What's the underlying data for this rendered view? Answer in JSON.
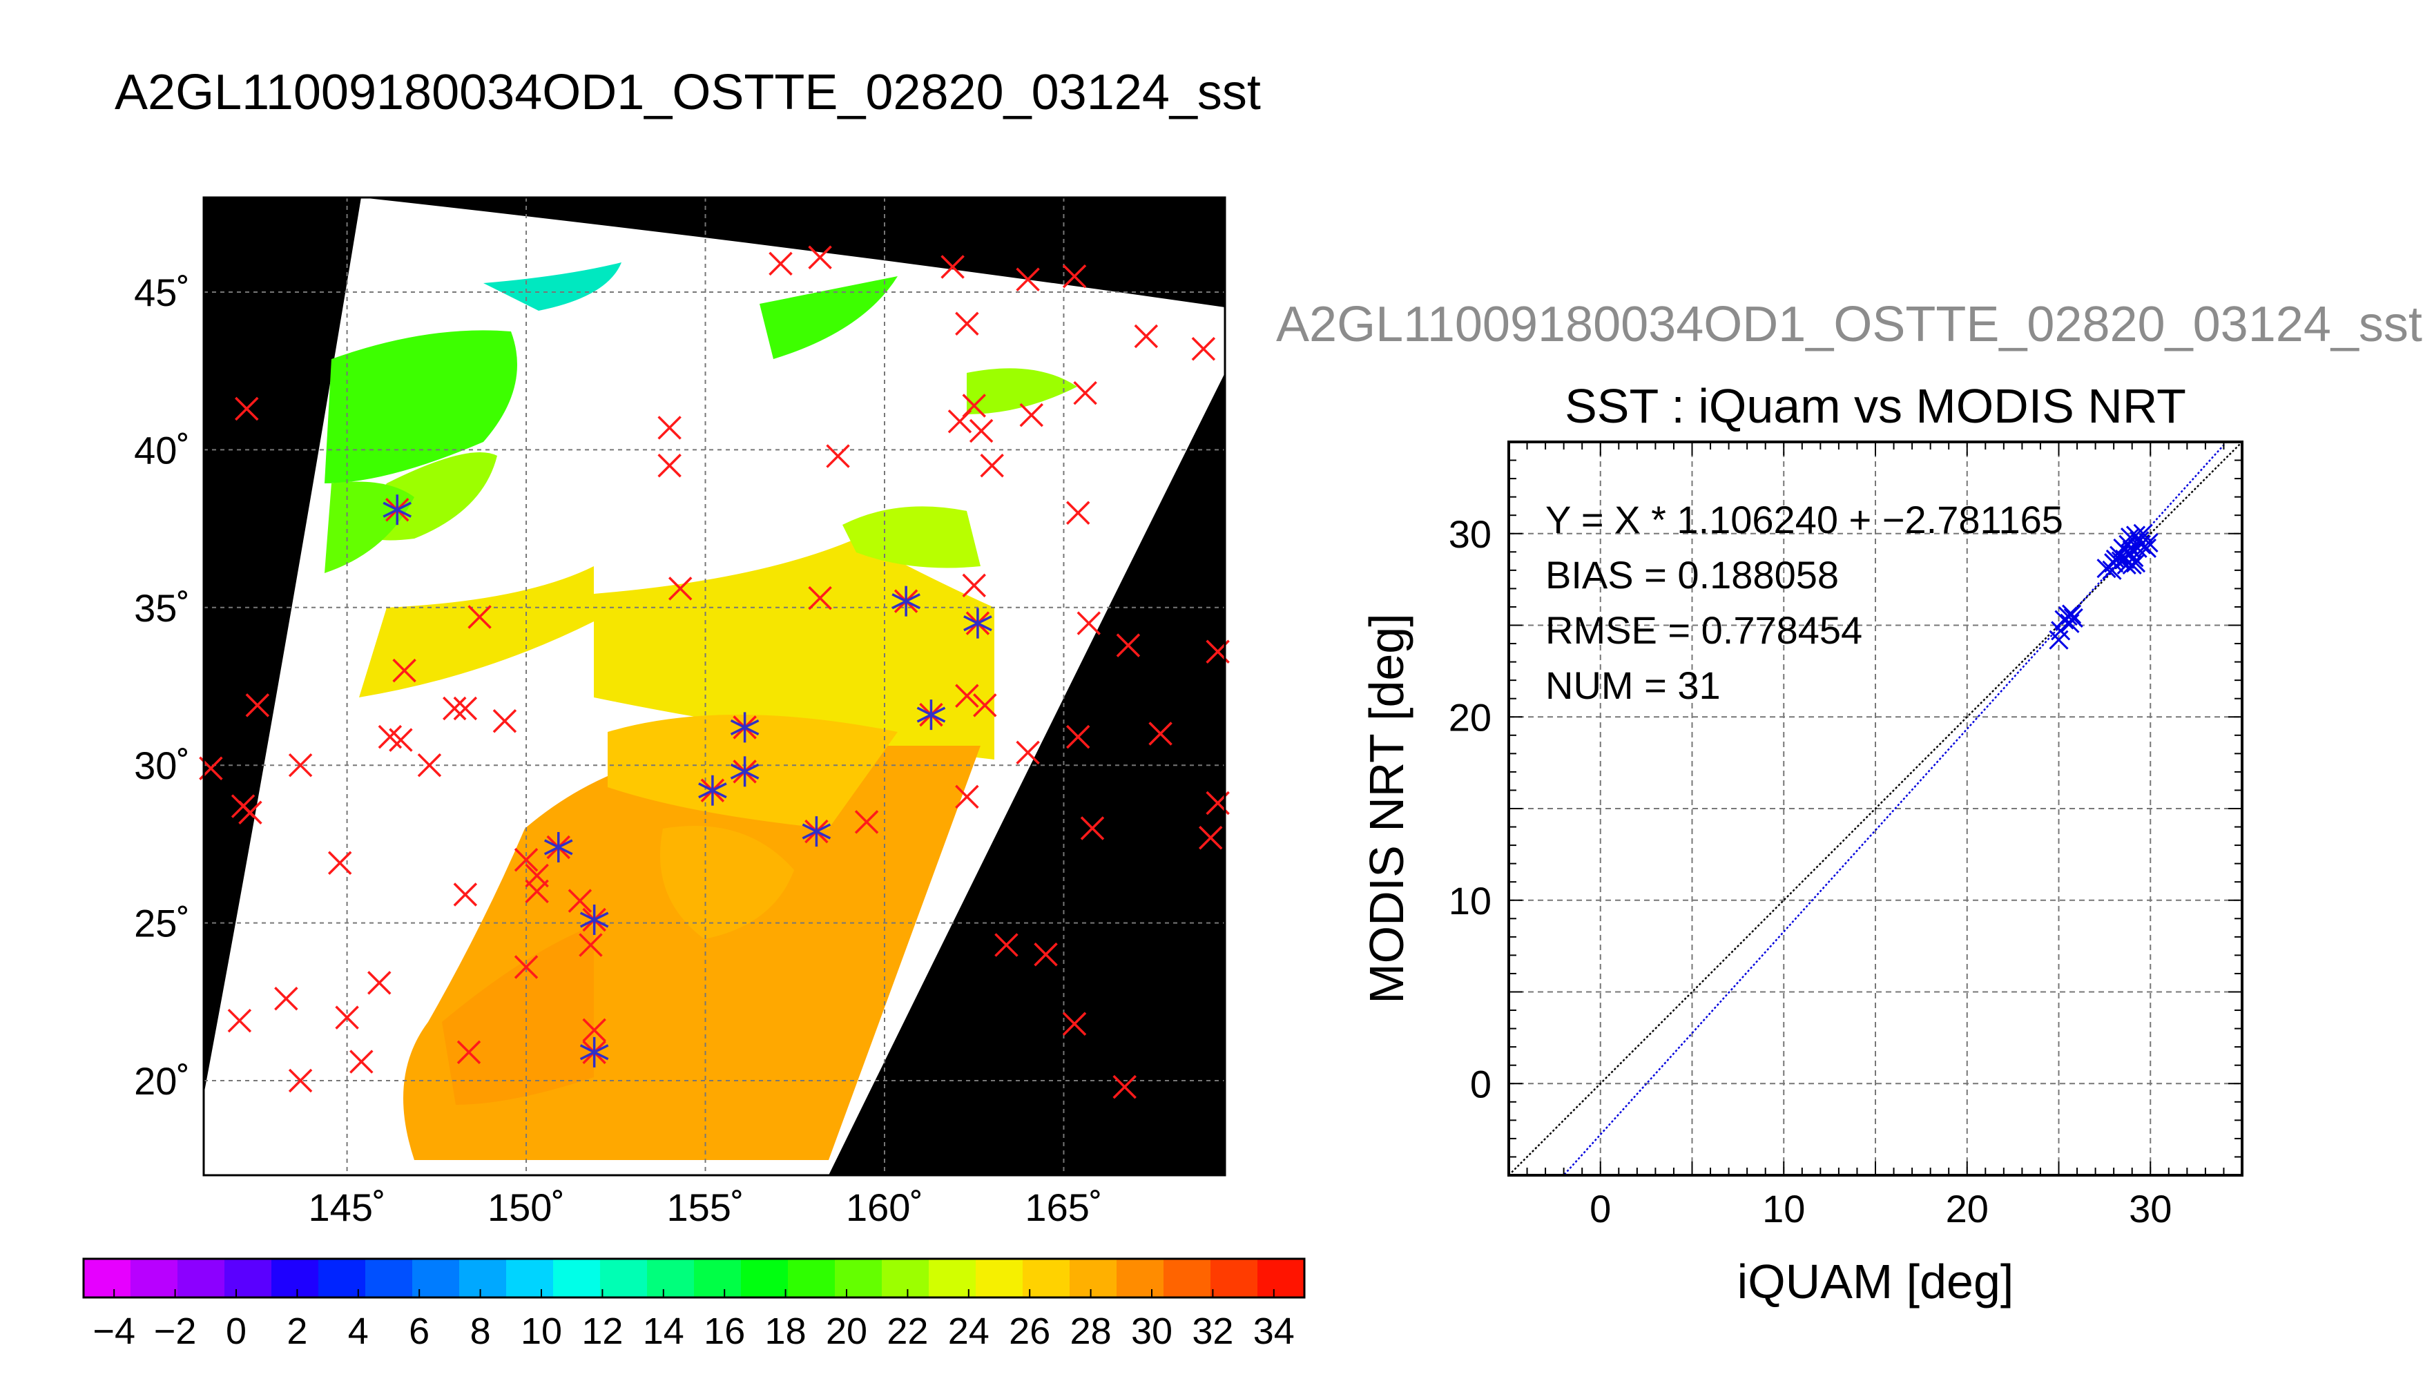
{
  "header": {
    "title": "A2GL11009180034OD1_OSTTE_02820_03124_sst"
  },
  "map_panel": {
    "lon_ticks": [
      "145˚",
      "150˚",
      "155˚",
      "160˚",
      "165˚"
    ],
    "lat_ticks": [
      "45˚",
      "40˚",
      "35˚",
      "30˚",
      "25˚",
      "20˚"
    ],
    "colorbar": {
      "tick_labels": [
        "−4",
        "−2",
        "0",
        "2",
        "4",
        "6",
        "8",
        "10",
        "12",
        "14",
        "16",
        "18",
        "20",
        "22",
        "24",
        "26",
        "28",
        "30",
        "32",
        "34"
      ],
      "colors": [
        "#e600ff",
        "#b800ff",
        "#8c00ff",
        "#5a00ff",
        "#1e00ff",
        "#0024ff",
        "#0050ff",
        "#007cff",
        "#00a8ff",
        "#00d4ff",
        "#00ffe8",
        "#00ffb4",
        "#00ff7c",
        "#00ff46",
        "#00ff10",
        "#2eff00",
        "#64ff00",
        "#9cff00",
        "#d2ff00",
        "#f6f000",
        "#ffd200",
        "#ffb000",
        "#ff8c00",
        "#ff6400",
        "#ff3c00",
        "#ff1400"
      ]
    }
  },
  "scatter_panel": {
    "subtitle": "A2GL11009180034OD1_OSTTE_02820_03124_sst",
    "title": "SST : iQuam vs MODIS NRT",
    "xlabel": "iQUAM [deg]",
    "ylabel": "MODIS NRT [deg]",
    "x_ticks": [
      "0",
      "10",
      "20",
      "30"
    ],
    "y_ticks": [
      "0",
      "10",
      "20",
      "30"
    ],
    "stats": {
      "fit": "Y = X * 1.106240 + −2.781165",
      "bias": "BIAS = 0.188058",
      "rmse": "RMSE = 0.778454",
      "num": "NUM = 31"
    }
  },
  "chart_data": [
    {
      "type": "heatmap",
      "title": "A2GL11009180034OD1_OSTTE_02820_03124_sst",
      "xlabel": "",
      "ylabel": "",
      "xlim": [
        141,
        169.5
      ],
      "ylim": [
        17,
        48
      ],
      "x_ticks": [
        145,
        150,
        155,
        160,
        165
      ],
      "y_ticks": [
        20,
        25,
        30,
        35,
        40,
        45
      ],
      "colorbar_range": [
        -5,
        35
      ],
      "grid": true,
      "matched_points": [
        [
          146.4,
          38.1
        ],
        [
          151.9,
          25.1
        ],
        [
          151.9,
          20.9
        ],
        [
          150.9,
          27.4
        ],
        [
          155.2,
          29.2
        ],
        [
          156.1,
          31.2
        ],
        [
          156.1,
          29.8
        ],
        [
          158.1,
          27.9
        ],
        [
          160.6,
          35.2
        ],
        [
          161.3,
          31.6
        ],
        [
          162.6,
          34.5
        ]
      ],
      "unmatched_points": [
        [
          142.2,
          41.3
        ],
        [
          141.2,
          29.9
        ],
        [
          142.5,
          31.9
        ],
        [
          142.1,
          28.7
        ],
        [
          142.3,
          28.5
        ],
        [
          143.7,
          30.0
        ],
        [
          144.8,
          26.9
        ],
        [
          142.0,
          21.9
        ],
        [
          143.3,
          22.6
        ],
        [
          143.7,
          20.0
        ],
        [
          145.0,
          22.0
        ],
        [
          145.4,
          20.6
        ],
        [
          145.9,
          23.1
        ],
        [
          146.6,
          33.0
        ],
        [
          146.2,
          30.9
        ],
        [
          146.5,
          30.8
        ],
        [
          147.3,
          30.0
        ],
        [
          148.0,
          31.8
        ],
        [
          148.3,
          31.8
        ],
        [
          148.7,
          34.7
        ],
        [
          149.4,
          31.4
        ],
        [
          148.3,
          25.9
        ],
        [
          148.4,
          20.9
        ],
        [
          150.0,
          27.0
        ],
        [
          150.3,
          26.5
        ],
        [
          150.3,
          26.0
        ],
        [
          150.0,
          23.6
        ],
        [
          151.5,
          25.7
        ],
        [
          151.8,
          24.3
        ],
        [
          151.9,
          21.6
        ],
        [
          154.0,
          40.7
        ],
        [
          154.0,
          39.5
        ],
        [
          154.3,
          35.6
        ],
        [
          157.1,
          45.9
        ],
        [
          158.2,
          35.3
        ],
        [
          158.2,
          46.1
        ],
        [
          158.7,
          39.8
        ],
        [
          159.5,
          28.2
        ],
        [
          161.9,
          45.8
        ],
        [
          162.3,
          44.0
        ],
        [
          162.1,
          40.9
        ],
        [
          162.5,
          41.4
        ],
        [
          162.7,
          40.6
        ],
        [
          163.0,
          39.5
        ],
        [
          164.1,
          41.1
        ],
        [
          162.5,
          35.7
        ],
        [
          162.3,
          32.2
        ],
        [
          162.8,
          31.9
        ],
        [
          162.3,
          29.0
        ],
        [
          164.0,
          30.4
        ],
        [
          165.4,
          38.0
        ],
        [
          165.7,
          34.5
        ],
        [
          166.8,
          33.8
        ],
        [
          165.4,
          30.9
        ],
        [
          167.7,
          31.0
        ],
        [
          165.8,
          28.0
        ],
        [
          163.4,
          24.3
        ],
        [
          164.5,
          24.0
        ],
        [
          165.3,
          21.8
        ],
        [
          166.7,
          19.8
        ],
        [
          169.3,
          33.6
        ],
        [
          169.3,
          28.8
        ],
        [
          169.1,
          27.7
        ],
        [
          165.3,
          45.5
        ],
        [
          164.0,
          45.4
        ],
        [
          165.6,
          41.8
        ],
        [
          167.3,
          43.6
        ],
        [
          168.9,
          43.2
        ]
      ]
    },
    {
      "type": "scatter",
      "title": "SST : iQuam vs MODIS NRT",
      "xlabel": "iQUAM [deg]",
      "ylabel": "MODIS NRT [deg]",
      "xlim": [
        -5,
        35
      ],
      "ylim": [
        -5,
        35
      ],
      "grid": true,
      "fit": {
        "slope": 1.10624,
        "intercept": -2.781165
      },
      "points": [
        [
          25.0,
          24.2
        ],
        [
          25.1,
          24.7
        ],
        [
          25.5,
          25.5
        ],
        [
          25.7,
          25.6
        ],
        [
          25.8,
          25.4
        ],
        [
          25.6,
          25.1
        ],
        [
          27.6,
          28.1
        ],
        [
          28.0,
          28.4
        ],
        [
          28.3,
          28.8
        ],
        [
          28.5,
          29.2
        ],
        [
          28.6,
          28.6
        ],
        [
          28.7,
          29.0
        ],
        [
          28.8,
          29.4
        ],
        [
          28.9,
          28.9
        ],
        [
          29.0,
          28.3
        ],
        [
          29.0,
          29.1
        ],
        [
          29.1,
          28.7
        ],
        [
          29.3,
          29.2
        ],
        [
          29.4,
          29.6
        ],
        [
          29.6,
          30.0
        ],
        [
          29.8,
          29.2
        ],
        [
          28.4,
          28.5
        ],
        [
          28.9,
          29.8
        ],
        [
          29.2,
          28.4
        ],
        [
          28.1,
          28.6
        ],
        [
          29.5,
          29.4
        ],
        [
          29.9,
          29.5
        ],
        [
          27.9,
          28.0
        ],
        [
          28.7,
          28.3
        ],
        [
          29.2,
          29.9
        ],
        [
          25.3,
          25.3
        ]
      ]
    }
  ]
}
